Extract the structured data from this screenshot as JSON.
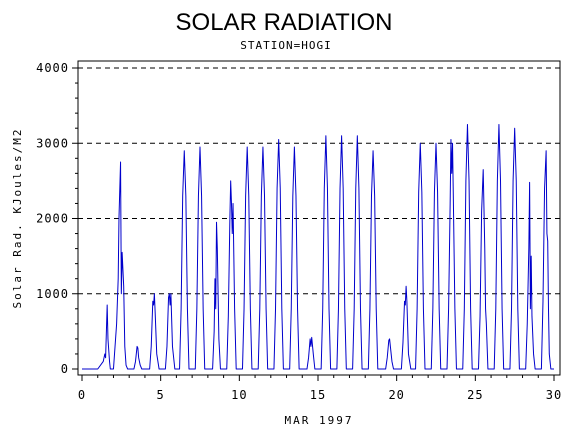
{
  "chart_data": {
    "type": "line",
    "title": "SOLAR RADIATION",
    "subtitle": "STATION=HOGI",
    "xlabel": "MAR 1997",
    "ylabel": "Solar Rad. KJoules/M2",
    "xlim": [
      0,
      30
    ],
    "ylim": [
      0,
      4000
    ],
    "x_ticks": [
      0,
      5,
      10,
      15,
      20,
      25,
      30
    ],
    "y_ticks": [
      0,
      1000,
      2000,
      3000,
      4000
    ],
    "grid": "horizontal dashed",
    "line_color": "#0000cc",
    "series": [
      {
        "x": [
          0,
          1.0,
          1.35,
          1.45,
          1.5,
          1.55,
          1.6,
          1.65,
          1.75,
          1.8,
          2.0,
          2.2,
          2.3,
          2.35,
          2.45,
          2.5,
          2.55,
          2.65,
          2.72,
          2.8,
          2.9,
          3.0,
          3.3,
          3.4,
          3.5,
          3.55,
          3.6,
          3.7,
          3.8,
          4.0,
          4.3,
          4.4,
          4.5,
          4.55,
          4.6,
          4.65,
          4.75,
          4.9,
          5.0,
          5.3,
          5.4,
          5.5,
          5.55,
          5.6,
          5.65,
          5.75,
          5.9,
          6.0,
          6.2,
          6.3,
          6.4,
          6.5,
          6.6,
          6.7,
          6.8,
          7.0,
          7.2,
          7.3,
          7.4,
          7.5,
          7.6,
          7.7,
          7.8,
          8.0,
          8.3,
          8.4,
          8.45,
          8.5,
          8.55,
          8.6,
          8.65,
          8.7,
          8.8,
          9.0,
          9.2,
          9.3,
          9.4,
          9.45,
          9.5,
          9.55,
          9.6,
          9.7,
          9.8,
          10.0,
          10.2,
          10.3,
          10.4,
          10.5,
          10.6,
          10.7,
          10.8,
          11.0,
          11.2,
          11.3,
          11.4,
          11.5,
          11.6,
          11.7,
          11.8,
          12.0,
          12.2,
          12.3,
          12.4,
          12.5,
          12.6,
          12.7,
          12.8,
          13.0,
          13.2,
          13.3,
          13.4,
          13.5,
          13.6,
          13.7,
          13.8,
          14.0,
          14.3,
          14.4,
          14.5,
          14.55,
          14.6,
          14.7,
          14.8,
          15.0,
          15.2,
          15.3,
          15.4,
          15.5,
          15.6,
          15.7,
          15.8,
          16.0,
          16.2,
          16.3,
          16.4,
          16.5,
          16.6,
          16.7,
          16.8,
          17.0,
          17.2,
          17.3,
          17.4,
          17.5,
          17.6,
          17.7,
          17.8,
          18.0,
          18.2,
          18.3,
          18.4,
          18.5,
          18.6,
          18.7,
          18.8,
          19.0,
          19.3,
          19.4,
          19.5,
          19.55,
          19.6,
          19.7,
          19.8,
          20.0,
          20.3,
          20.4,
          20.5,
          20.55,
          20.6,
          20.65,
          20.75,
          20.9,
          21.0,
          21.2,
          21.3,
          21.4,
          21.5,
          21.6,
          21.7,
          21.8,
          22.0,
          22.2,
          22.3,
          22.4,
          22.5,
          22.6,
          22.7,
          22.8,
          23.0,
          23.2,
          23.3,
          23.4,
          23.45,
          23.5,
          23.55,
          23.6,
          23.7,
          23.8,
          24.0,
          24.2,
          24.3,
          24.4,
          24.5,
          24.6,
          24.7,
          24.8,
          25.0,
          25.2,
          25.3,
          25.4,
          25.5,
          25.6,
          25.65,
          25.7,
          25.8,
          26.0,
          26.2,
          26.3,
          26.4,
          26.5,
          26.6,
          26.7,
          26.8,
          27.0,
          27.2,
          27.3,
          27.4,
          27.5,
          27.6,
          27.7,
          27.8,
          28.0,
          28.2,
          28.3,
          28.4,
          28.45,
          28.5,
          28.55,
          28.6,
          28.7,
          28.8,
          29.0,
          29.2,
          29.3,
          29.4,
          29.5,
          29.55,
          29.6,
          29.65,
          29.7,
          29.8,
          30.0
        ],
        "y": [
          0,
          0,
          100,
          200,
          150,
          500,
          850,
          400,
          100,
          0,
          0,
          600,
          1200,
          2000,
          2750,
          1000,
          1550,
          1100,
          300,
          50,
          0,
          0,
          0,
          100,
          300,
          280,
          150,
          50,
          0,
          0,
          0,
          300,
          900,
          850,
          1000,
          750,
          200,
          0,
          0,
          0,
          300,
          950,
          1000,
          850,
          1000,
          300,
          0,
          0,
          0,
          800,
          2300,
          2900,
          2300,
          800,
          0,
          0,
          0,
          800,
          2300,
          2950,
          2300,
          800,
          0,
          0,
          0,
          500,
          1200,
          800,
          1950,
          1600,
          1000,
          400,
          0,
          0,
          0,
          700,
          2000,
          2500,
          2200,
          1800,
          2200,
          800,
          0,
          0,
          0,
          800,
          2300,
          2950,
          2300,
          800,
          0,
          0,
          0,
          800,
          2300,
          2950,
          2300,
          800,
          0,
          0,
          0,
          800,
          2400,
          3050,
          2400,
          800,
          0,
          0,
          0,
          800,
          2300,
          2950,
          2300,
          800,
          0,
          0,
          0,
          150,
          400,
          300,
          420,
          200,
          0,
          0,
          0,
          800,
          2400,
          3100,
          2400,
          800,
          0,
          0,
          0,
          800,
          2400,
          3100,
          2400,
          800,
          0,
          0,
          0,
          800,
          2400,
          3100,
          2400,
          800,
          0,
          0,
          0,
          800,
          2300,
          2900,
          2300,
          800,
          0,
          0,
          0,
          150,
          380,
          400,
          300,
          100,
          0,
          0,
          0,
          350,
          900,
          850,
          1100,
          900,
          200,
          0,
          0,
          0,
          800,
          2350,
          3000,
          2350,
          800,
          0,
          0,
          0,
          800,
          2350,
          3000,
          2350,
          800,
          0,
          0,
          0,
          800,
          2200,
          3050,
          2600,
          3000,
          2300,
          800,
          0,
          0,
          0,
          800,
          2500,
          3250,
          2500,
          800,
          0,
          0,
          0,
          700,
          2100,
          2650,
          1600,
          800,
          600,
          0,
          0,
          0,
          800,
          2500,
          3250,
          2500,
          800,
          0,
          0,
          0,
          800,
          2500,
          3200,
          2500,
          800,
          0,
          0,
          0,
          600,
          1600,
          2480,
          800,
          1500,
          700,
          200,
          0,
          0,
          0,
          900,
          2400,
          2900,
          1800,
          1700,
          800,
          200,
          0,
          0
        ]
      }
    ]
  }
}
